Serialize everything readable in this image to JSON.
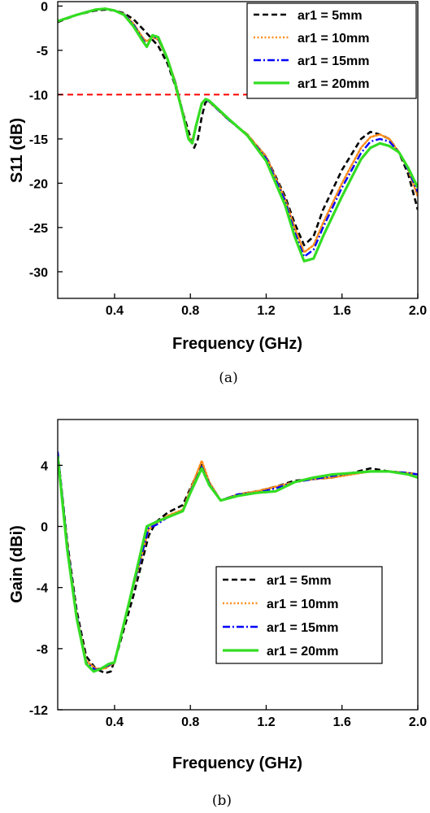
{
  "colors": {
    "ar1_5mm": "#000000",
    "ar1_10mm": "#ff8c1a",
    "ar1_15mm": "#0000ff",
    "ar1_20mm": "#33dd22",
    "threshold": "#ff0000"
  },
  "chart_data": [
    {
      "type": "line",
      "caption": "(a)",
      "xlabel": "Frequency (GHz)",
      "ylabel": "S11 (dB)",
      "xlim": [
        0.1,
        2.0
      ],
      "ylim": [
        -33,
        0.5
      ],
      "xticks": [
        "0.4",
        "0.8",
        "1.2",
        "1.6",
        "2.0"
      ],
      "yticks": [
        "0",
        "-5",
        "-10",
        "-15",
        "-20",
        "-25",
        "-30"
      ],
      "grid": false,
      "legend_position": "top-right",
      "reference_line": {
        "y": -10,
        "style": "dashed",
        "color": "#ff0000"
      },
      "series": [
        {
          "name": "ar1 = 5mm",
          "style": "dashed",
          "x": [
            0.1,
            0.2,
            0.3,
            0.35,
            0.4,
            0.45,
            0.5,
            0.55,
            0.58,
            0.6,
            0.63,
            0.68,
            0.72,
            0.76,
            0.8,
            0.82,
            0.84,
            0.86,
            0.88,
            0.9,
            0.95,
            1.0,
            1.1,
            1.2,
            1.3,
            1.35,
            1.4,
            1.45,
            1.5,
            1.6,
            1.7,
            1.75,
            1.8,
            1.85,
            1.9,
            1.95,
            2.0
          ],
          "y": [
            -1.8,
            -1.0,
            -0.5,
            -0.4,
            -0.5,
            -0.8,
            -1.5,
            -2.6,
            -3.3,
            -3.8,
            -4.5,
            -6.5,
            -9.0,
            -12.0,
            -14.8,
            -16.0,
            -15.0,
            -12.5,
            -10.8,
            -10.8,
            -11.8,
            -12.8,
            -14.5,
            -17.0,
            -21.5,
            -24.5,
            -27.0,
            -26.0,
            -23.0,
            -18.5,
            -15.0,
            -14.2,
            -14.5,
            -15.0,
            -16.5,
            -19.0,
            -23.0
          ]
        },
        {
          "name": "ar1 = 10mm",
          "style": "dotted",
          "x": [
            0.1,
            0.2,
            0.3,
            0.35,
            0.4,
            0.45,
            0.5,
            0.55,
            0.57,
            0.6,
            0.63,
            0.68,
            0.72,
            0.76,
            0.79,
            0.81,
            0.83,
            0.86,
            0.88,
            0.9,
            0.95,
            1.0,
            1.1,
            1.2,
            1.3,
            1.35,
            1.4,
            1.45,
            1.5,
            1.6,
            1.7,
            1.75,
            1.8,
            1.85,
            1.9,
            1.95,
            2.0
          ],
          "y": [
            -1.7,
            -1.0,
            -0.4,
            -0.3,
            -0.5,
            -0.9,
            -2.0,
            -3.6,
            -4.0,
            -3.5,
            -3.8,
            -6.0,
            -8.5,
            -12.0,
            -14.8,
            -15.2,
            -13.5,
            -11.0,
            -10.6,
            -10.8,
            -11.8,
            -12.8,
            -14.5,
            -17.0,
            -21.8,
            -25.0,
            -27.8,
            -27.0,
            -24.5,
            -20.0,
            -16.0,
            -14.8,
            -14.5,
            -15.0,
            -16.5,
            -18.5,
            -21.5
          ]
        },
        {
          "name": "ar1 = 15mm",
          "style": "dashdot",
          "x": [
            0.1,
            0.2,
            0.3,
            0.35,
            0.4,
            0.45,
            0.5,
            0.55,
            0.57,
            0.6,
            0.63,
            0.68,
            0.72,
            0.76,
            0.79,
            0.81,
            0.83,
            0.86,
            0.88,
            0.9,
            0.95,
            1.0,
            1.1,
            1.2,
            1.3,
            1.35,
            1.4,
            1.45,
            1.5,
            1.6,
            1.7,
            1.75,
            1.8,
            1.85,
            1.9,
            1.95,
            2.0
          ],
          "y": [
            -1.7,
            -1.0,
            -0.4,
            -0.3,
            -0.5,
            -0.9,
            -2.1,
            -3.8,
            -4.4,
            -3.4,
            -3.7,
            -6.0,
            -8.6,
            -12.0,
            -14.9,
            -15.3,
            -13.5,
            -11.0,
            -10.6,
            -10.8,
            -11.8,
            -12.8,
            -14.6,
            -17.2,
            -22.0,
            -25.5,
            -28.3,
            -27.5,
            -25.0,
            -20.5,
            -16.6,
            -15.3,
            -15.0,
            -15.3,
            -16.5,
            -18.5,
            -21.0
          ]
        },
        {
          "name": "ar1 = 20mm",
          "style": "solid",
          "x": [
            0.1,
            0.2,
            0.3,
            0.35,
            0.4,
            0.45,
            0.5,
            0.55,
            0.57,
            0.6,
            0.63,
            0.68,
            0.72,
            0.76,
            0.79,
            0.81,
            0.83,
            0.86,
            0.88,
            0.9,
            0.95,
            1.0,
            1.1,
            1.2,
            1.3,
            1.35,
            1.4,
            1.45,
            1.5,
            1.6,
            1.7,
            1.75,
            1.8,
            1.85,
            1.9,
            1.95,
            2.0
          ],
          "y": [
            -1.7,
            -1.0,
            -0.4,
            -0.3,
            -0.5,
            -1.0,
            -2.3,
            -4.0,
            -4.6,
            -3.3,
            -3.5,
            -6.0,
            -8.8,
            -12.2,
            -15.0,
            -15.5,
            -13.5,
            -11.0,
            -10.5,
            -10.7,
            -11.7,
            -12.7,
            -14.6,
            -17.5,
            -22.5,
            -26.0,
            -28.8,
            -28.5,
            -26.0,
            -21.5,
            -17.3,
            -16.0,
            -15.5,
            -15.8,
            -16.5,
            -18.3,
            -20.5
          ]
        }
      ]
    },
    {
      "type": "line",
      "caption": "(b)",
      "xlabel": "Frequency (GHz)",
      "ylabel": "Gain (dBi)",
      "xlim": [
        0.1,
        2.0
      ],
      "ylim": [
        -12,
        7
      ],
      "xticks": [
        "0.4",
        "0.8",
        "1.2",
        "1.6",
        "2.0"
      ],
      "yticks": [
        "4",
        "0",
        "-4",
        "-8",
        "-12"
      ],
      "grid": false,
      "legend_position": "center-right",
      "series": [
        {
          "name": "ar1 = 5mm",
          "style": "dashed",
          "x": [
            0.1,
            0.15,
            0.2,
            0.25,
            0.3,
            0.35,
            0.38,
            0.42,
            0.5,
            0.58,
            0.62,
            0.68,
            0.76,
            0.8,
            0.86,
            0.9,
            0.96,
            1.05,
            1.15,
            1.25,
            1.35,
            1.45,
            1.55,
            1.65,
            1.75,
            1.85,
            1.95,
            2.0
          ],
          "y": [
            4.8,
            -1.0,
            -5.5,
            -8.5,
            -9.3,
            -9.6,
            -9.5,
            -8.0,
            -4.5,
            -0.6,
            0.3,
            0.9,
            1.4,
            2.5,
            4.1,
            2.8,
            1.7,
            2.1,
            2.3,
            2.6,
            3.0,
            3.1,
            3.2,
            3.5,
            3.8,
            3.6,
            3.5,
            3.4
          ]
        },
        {
          "name": "ar1 = 10mm",
          "style": "dotted",
          "x": [
            0.1,
            0.15,
            0.2,
            0.25,
            0.3,
            0.35,
            0.4,
            0.48,
            0.58,
            0.62,
            0.68,
            0.76,
            0.8,
            0.86,
            0.9,
            0.96,
            1.05,
            1.15,
            1.25,
            1.35,
            1.45,
            1.55,
            1.65,
            1.75,
            1.85,
            1.95,
            2.0
          ],
          "y": [
            4.7,
            -1.2,
            -5.8,
            -8.8,
            -9.3,
            -9.3,
            -8.9,
            -4.8,
            -0.2,
            0.2,
            0.7,
            1.1,
            2.4,
            4.3,
            2.9,
            1.7,
            2.1,
            2.3,
            2.6,
            2.9,
            3.1,
            3.2,
            3.4,
            3.6,
            3.6,
            3.5,
            3.4
          ]
        },
        {
          "name": "ar1 = 15mm",
          "style": "dashdot",
          "x": [
            0.1,
            0.15,
            0.2,
            0.25,
            0.3,
            0.35,
            0.4,
            0.48,
            0.58,
            0.62,
            0.68,
            0.76,
            0.8,
            0.86,
            0.9,
            0.96,
            1.05,
            1.15,
            1.25,
            1.35,
            1.45,
            1.55,
            1.65,
            1.75,
            1.85,
            1.95,
            2.0
          ],
          "y": [
            4.9,
            -1.2,
            -5.8,
            -8.9,
            -9.4,
            -9.2,
            -8.9,
            -4.8,
            -0.1,
            0.1,
            0.6,
            1.0,
            2.3,
            3.9,
            2.8,
            1.7,
            2.1,
            2.2,
            2.5,
            2.9,
            3.1,
            3.3,
            3.5,
            3.6,
            3.6,
            3.5,
            3.4
          ]
        },
        {
          "name": "ar1 = 20mm",
          "style": "solid",
          "x": [
            0.1,
            0.15,
            0.2,
            0.25,
            0.29,
            0.33,
            0.37,
            0.4,
            0.48,
            0.57,
            0.62,
            0.68,
            0.76,
            0.8,
            0.86,
            0.9,
            0.96,
            1.05,
            1.15,
            1.25,
            1.35,
            1.45,
            1.55,
            1.65,
            1.75,
            1.85,
            1.95,
            2.0
          ],
          "y": [
            4.6,
            -1.5,
            -6.0,
            -9.0,
            -9.5,
            -9.3,
            -9.0,
            -8.9,
            -4.8,
            0.0,
            0.3,
            0.6,
            1.0,
            2.2,
            3.8,
            2.7,
            1.7,
            2.0,
            2.2,
            2.3,
            2.9,
            3.2,
            3.4,
            3.5,
            3.6,
            3.6,
            3.4,
            3.2
          ]
        }
      ]
    }
  ]
}
